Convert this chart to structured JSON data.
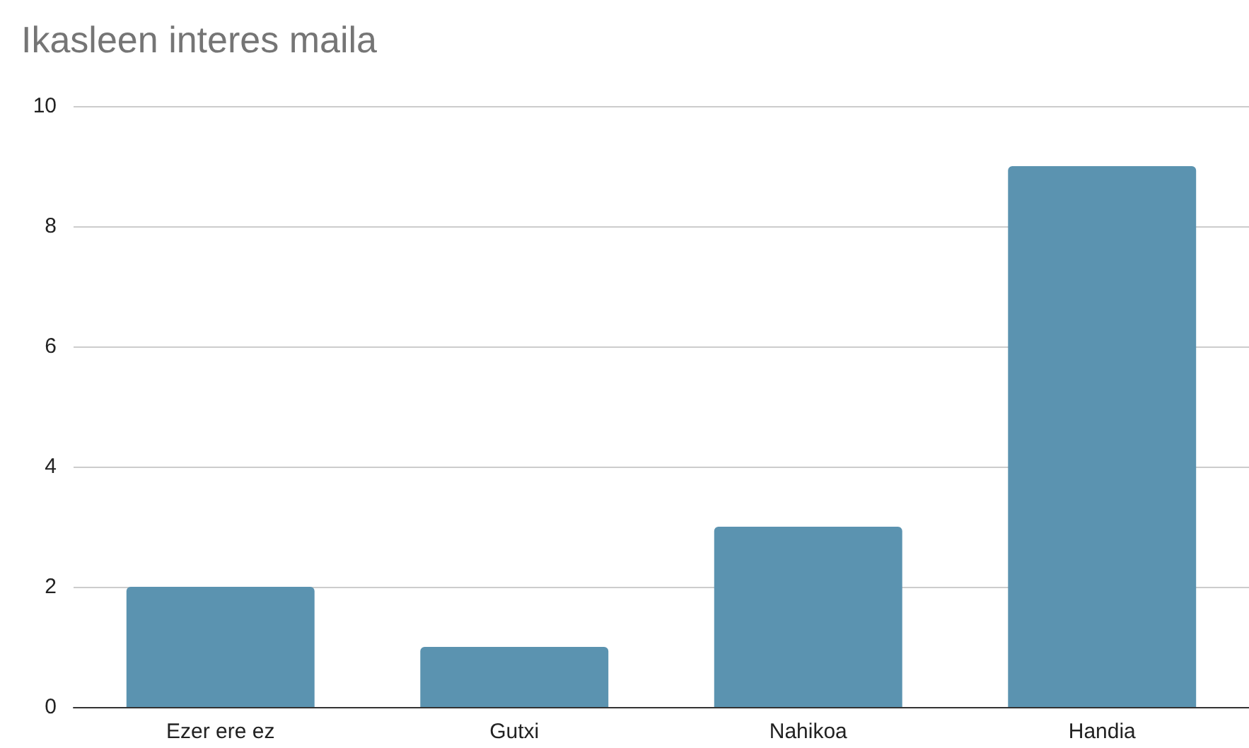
{
  "chart_data": {
    "type": "bar",
    "title": "Ikasleen interes maila",
    "categories": [
      "Ezer ere ez",
      "Gutxi",
      "Nahikoa",
      "Handia"
    ],
    "values": [
      2,
      1,
      3,
      9
    ],
    "color": "#5b93b0",
    "ylim": [
      0,
      10
    ],
    "yticks": [
      0,
      2,
      4,
      6,
      8,
      10
    ],
    "grid": "y"
  }
}
